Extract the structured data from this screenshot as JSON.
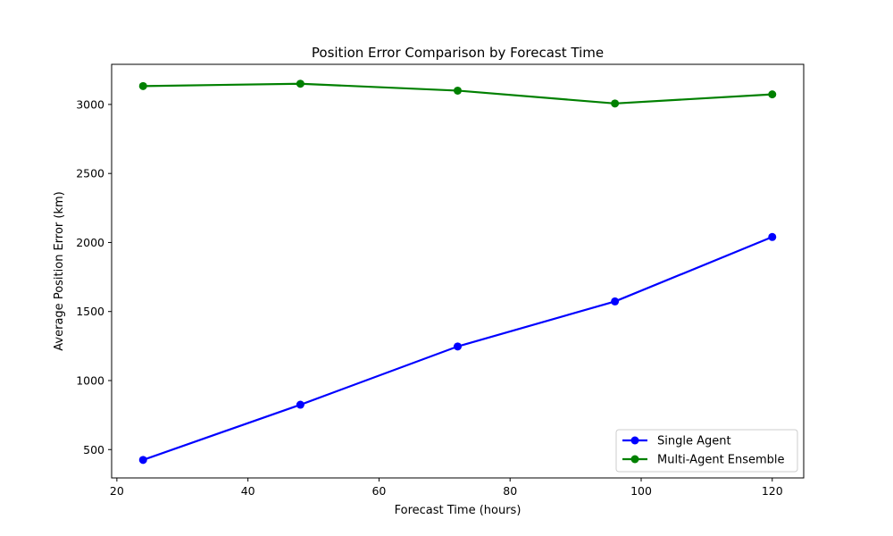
{
  "chart_data": {
    "type": "line",
    "title": "Position Error Comparison by Forecast Time",
    "xlabel": "Forecast Time (hours)",
    "ylabel": "Average Position Error (km)",
    "x": [
      24,
      48,
      72,
      96,
      120
    ],
    "series": [
      {
        "name": "Single Agent",
        "values": [
          425,
          825,
          1247,
          1573,
          2040
        ],
        "color": "#0000ff",
        "marker": "circle"
      },
      {
        "name": "Multi-Agent Ensemble",
        "values": [
          3133,
          3150,
          3100,
          3007,
          3073
        ],
        "color": "#008000",
        "marker": "circle"
      }
    ],
    "xlim": [
      19.2,
      124.8
    ],
    "ylim": [
      294.6,
      3290.6
    ],
    "xticks": [
      20,
      40,
      60,
      80,
      100,
      120
    ],
    "yticks": [
      500,
      1000,
      1500,
      2000,
      2500,
      3000
    ],
    "grid": false,
    "legend_position": "bottom-right"
  }
}
